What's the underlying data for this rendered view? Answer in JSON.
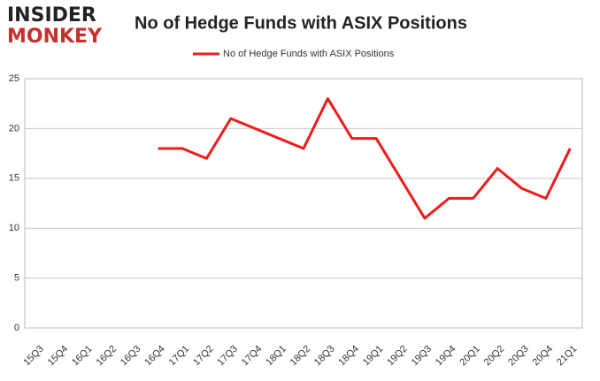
{
  "logo": {
    "top": "INSIDER",
    "bottom": "MONKEY"
  },
  "chart_data": {
    "type": "line",
    "title": "No of Hedge Funds with ASIX Positions",
    "categories": [
      "15Q3",
      "15Q4",
      "16Q1",
      "16Q2",
      "16Q3",
      "16Q4",
      "17Q1",
      "17Q2",
      "17Q3",
      "17Q4",
      "18Q1",
      "18Q2",
      "18Q3",
      "18Q4",
      "19Q1",
      "19Q2",
      "19Q3",
      "19Q4",
      "20Q1",
      "20Q2",
      "20Q3",
      "20Q4",
      "21Q1"
    ],
    "series": [
      {
        "name": "No of Hedge Funds with ASIX Positions",
        "color": "#ee1c1c",
        "values": [
          null,
          null,
          null,
          null,
          null,
          18,
          18,
          17,
          21,
          20,
          19,
          18,
          23,
          19,
          19,
          15,
          11,
          13,
          13,
          16,
          14,
          13,
          18
        ]
      }
    ],
    "ylim": [
      0,
      25
    ],
    "yticks": [
      0,
      5,
      10,
      15,
      20,
      25
    ],
    "grid": true,
    "legend": "top"
  }
}
